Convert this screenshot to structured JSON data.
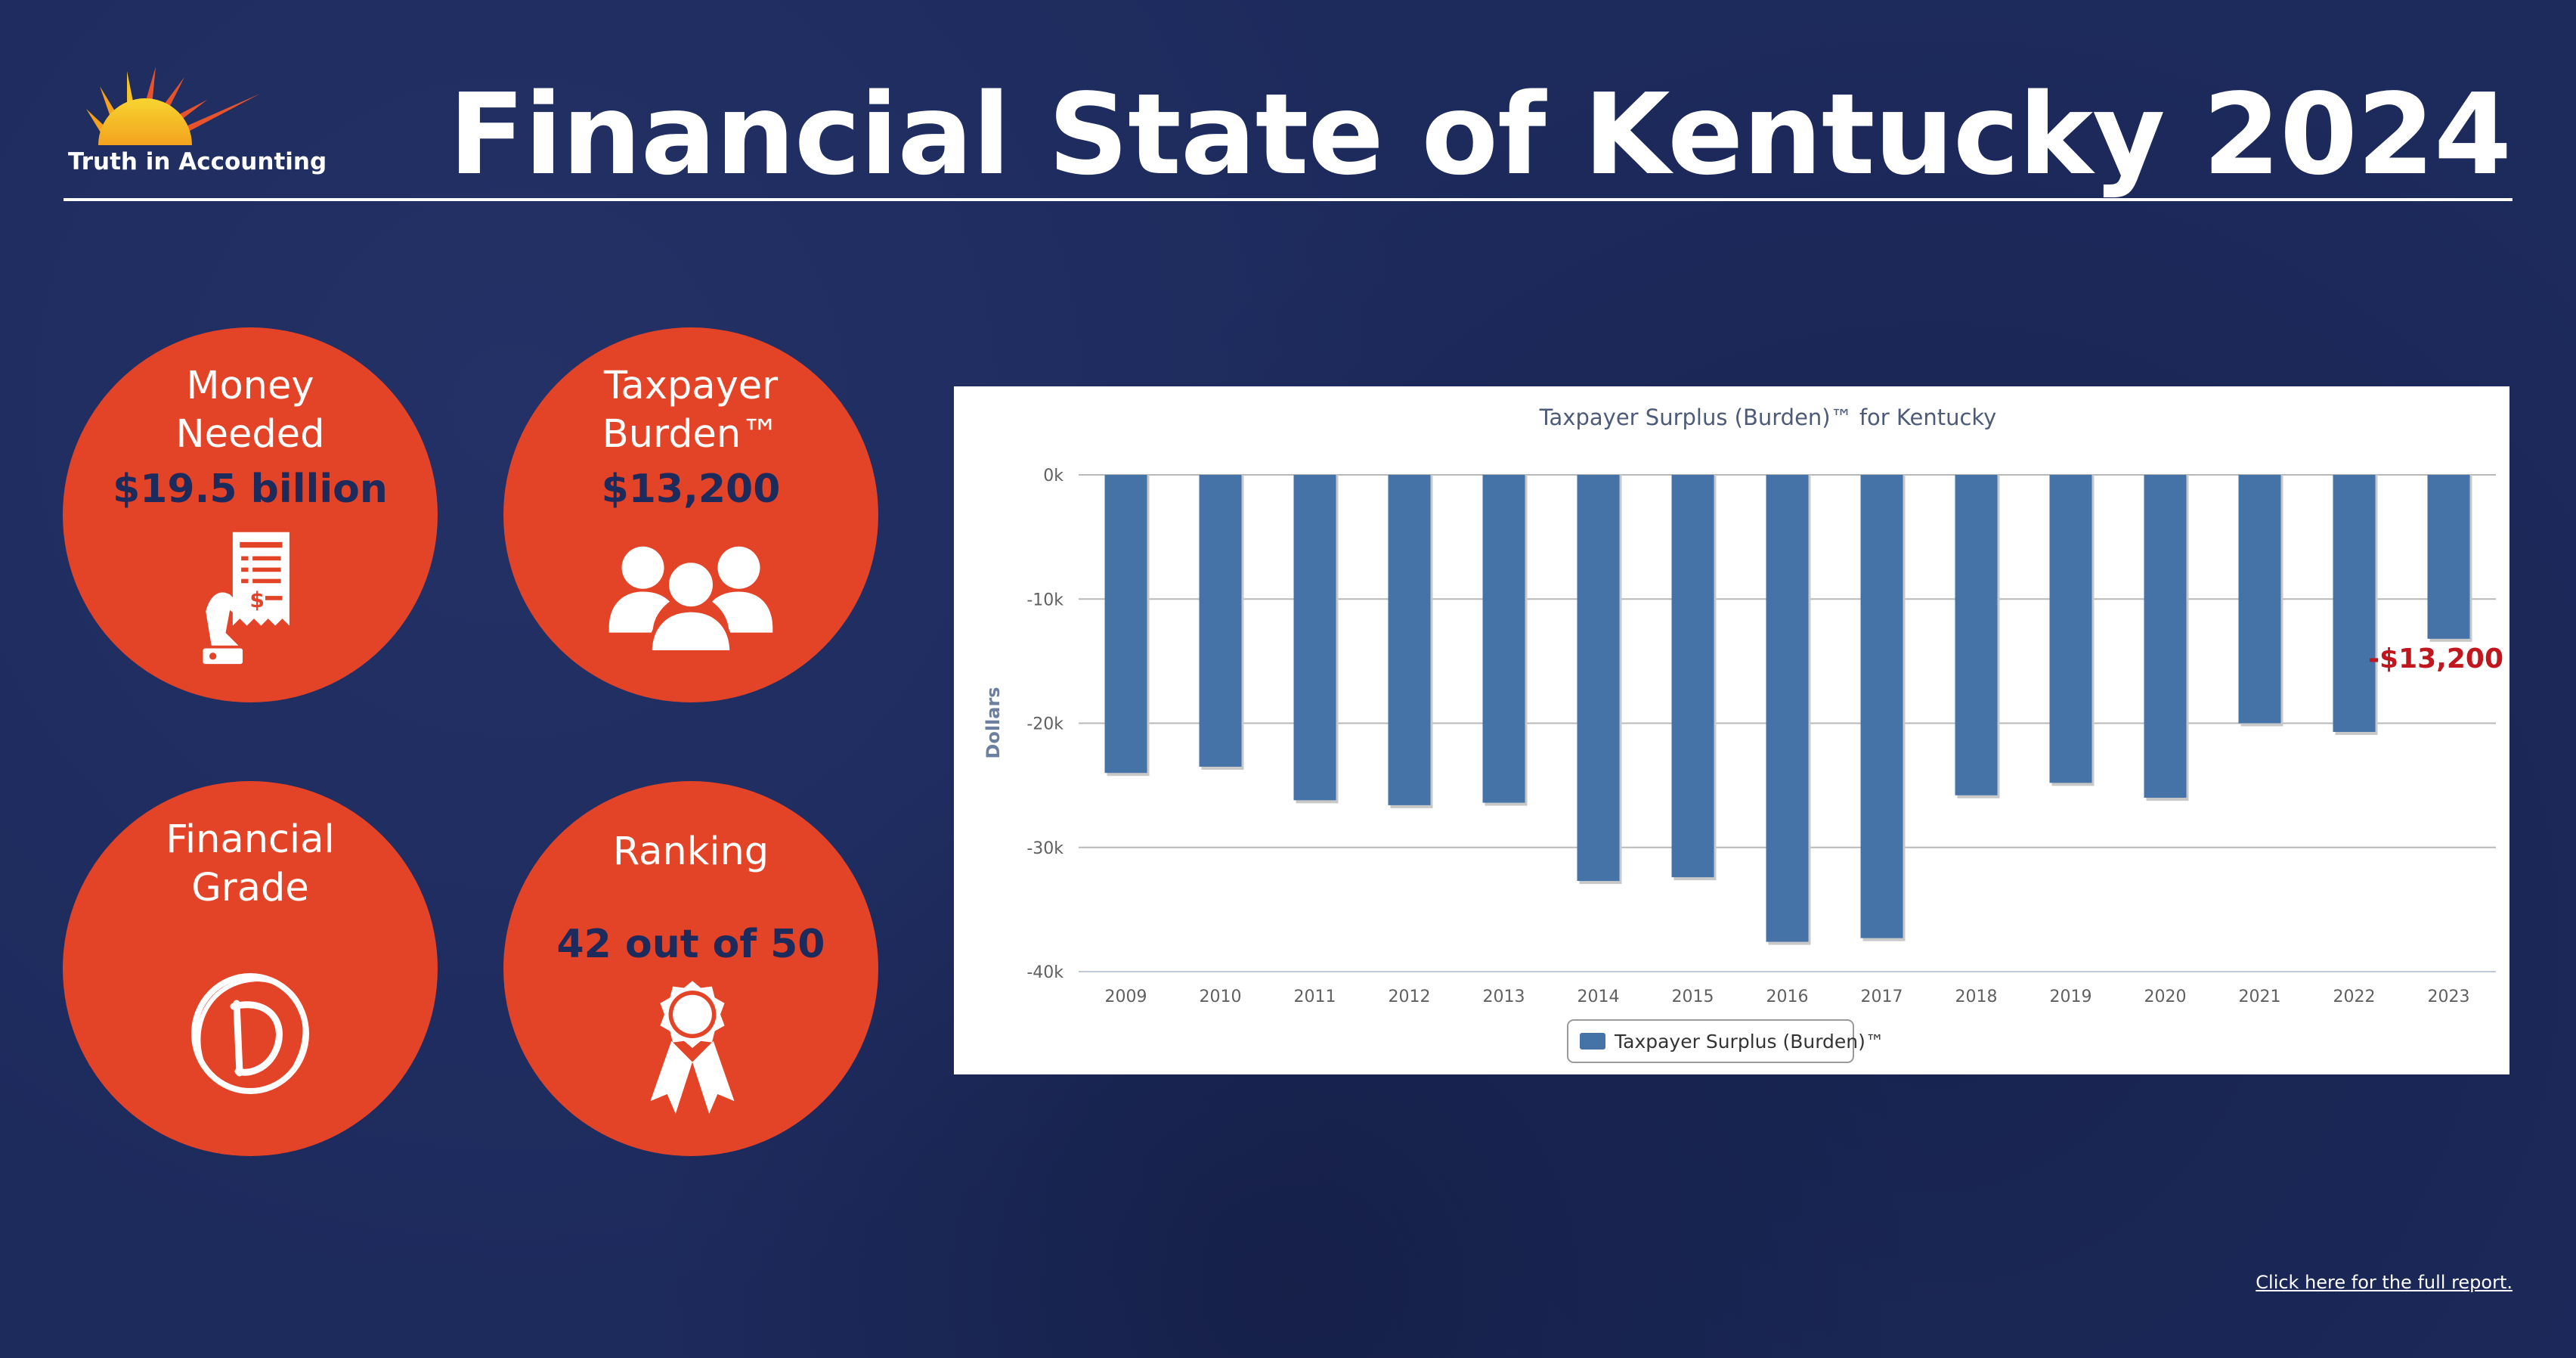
{
  "header": {
    "logo_text": "Truth in Accounting",
    "title": "Financial State of Kentucky 2024"
  },
  "cards": {
    "money_needed": {
      "label": "Money\nNeeded",
      "value": "$19.5 billion",
      "icon": "bill-payment-icon"
    },
    "taxpayer_burden": {
      "label": "Taxpayer\nBurden™",
      "value": "$13,200",
      "icon": "people-group-icon"
    },
    "financial_grade": {
      "label": "Financial\nGrade",
      "value": "",
      "icon": "grade-d-icon"
    },
    "ranking": {
      "label": "Ranking",
      "value": "42 out of 50",
      "icon": "award-ribbon-icon"
    }
  },
  "colors": {
    "background": "#1d2a5c",
    "circle": "#e34327",
    "bar": "#4572a7",
    "callout": "#c0171f"
  },
  "chart_data": {
    "type": "bar",
    "title": "Taxpayer Surplus (Burden)™ for Kentucky",
    "ylabel": "Dollars",
    "xlabel": "",
    "categories": [
      "2009",
      "2010",
      "2011",
      "2012",
      "2013",
      "2014",
      "2015",
      "2016",
      "2017",
      "2018",
      "2019",
      "2020",
      "2021",
      "2022",
      "2023"
    ],
    "series": [
      {
        "name": "Taxpayer Surplus (Burden)™",
        "values": [
          -24000,
          -23500,
          -26200,
          -26600,
          -26400,
          -32700,
          -32400,
          -37600,
          -37300,
          -25800,
          -24800,
          -26000,
          -20000,
          -20700,
          -13200
        ]
      }
    ],
    "ylim": [
      -40000,
      0
    ],
    "yticks": [
      0,
      -10000,
      -20000,
      -30000,
      -40000
    ],
    "ytick_labels": [
      "0k",
      "-10k",
      "-20k",
      "-30k",
      "-40k"
    ],
    "grid": true,
    "legend": "bottom-center",
    "annotation": "-$13,200"
  },
  "footer": {
    "report_link": "Click here for the full report."
  }
}
